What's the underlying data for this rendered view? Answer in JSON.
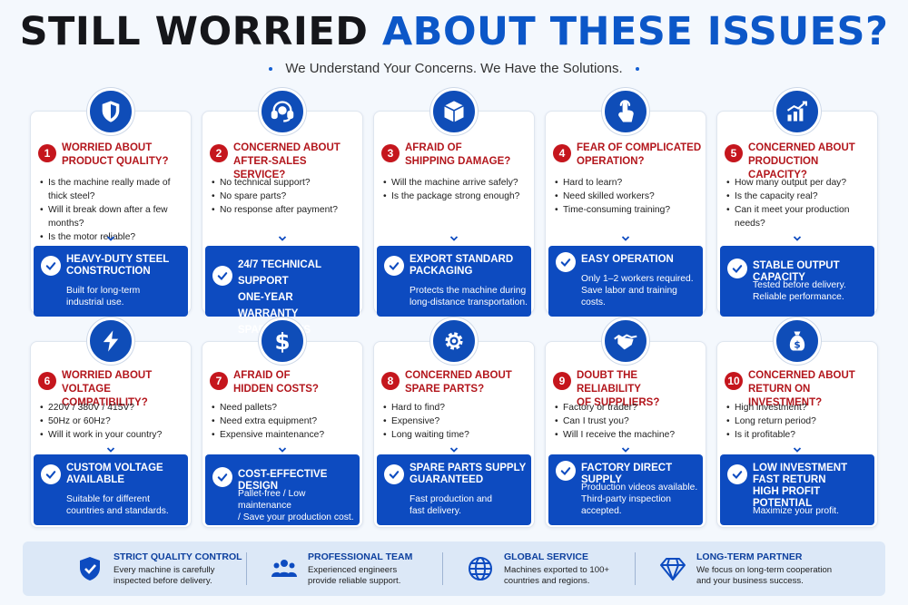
{
  "header": {
    "title_part1": "STILL WORRIED",
    "title_part2": "ABOUT THESE ISSUES?",
    "subtitle": "We Understand Your Concerns. We Have the Solutions."
  },
  "colors": {
    "primary_blue": "#0d4bc0",
    "accent_red": "#c5161d",
    "title_dark": "#15161a",
    "footer_bg": "#dce8f7"
  },
  "cards": [
    {
      "icon": "shield-icon",
      "number": "1",
      "heading": [
        "WORRIED ABOUT",
        "PRODUCT QUALITY?"
      ],
      "questions": [
        "Is the machine really made of thick steel?",
        "Will it break down after a few months?",
        "Is the motor reliable?"
      ],
      "solution_title": [
        "HEAVY-DUTY STEEL",
        "CONSTRUCTION"
      ],
      "solution_desc": [
        "Built for long-term",
        "industrial use."
      ]
    },
    {
      "icon": "headset-icon",
      "number": "2",
      "heading": [
        "CONCERNED ABOUT",
        "AFTER-SALES SERVICE?"
      ],
      "questions": [
        "No technical support?",
        "No spare parts?",
        "No response after payment?"
      ],
      "solution_title": [
        "24/7 TECHNICAL SUPPORT",
        "ONE-YEAR WARRANTY",
        "SPARE PARTS AVAILABLE"
      ],
      "solution_desc": []
    },
    {
      "icon": "package-icon",
      "number": "3",
      "heading": [
        "AFRAID OF",
        "SHIPPING DAMAGE?"
      ],
      "questions": [
        "Will the machine arrive safely?",
        "Is the package strong enough?"
      ],
      "solution_title": [
        "EXPORT STANDARD",
        "PACKAGING"
      ],
      "solution_desc": [
        "Protects the machine during",
        "long-distance transportation."
      ]
    },
    {
      "icon": "touch-hand-icon",
      "number": "4",
      "heading": [
        "FEAR OF COMPLICATED",
        "OPERATION?"
      ],
      "questions": [
        "Hard to learn?",
        "Need skilled workers?",
        "Time-consuming training?"
      ],
      "solution_title": [
        "EASY OPERATION"
      ],
      "solution_desc": [
        "Only 1–2 workers required.",
        "Save labor and training",
        "costs."
      ]
    },
    {
      "icon": "bar-chart-icon",
      "number": "5",
      "heading": [
        "CONCERNED ABOUT",
        "PRODUCTION CAPACITY?"
      ],
      "questions": [
        "How many output per day?",
        "Is the capacity real?",
        "Can it meet your production needs?"
      ],
      "solution_title": [
        "STABLE OUTPUT CAPACITY"
      ],
      "solution_desc": [
        "Tested before delivery.",
        "Reliable performance."
      ]
    },
    {
      "icon": "lightning-icon",
      "number": "6",
      "heading": [
        "WORRIED ABOUT",
        "VOLTAGE COMPATIBILITY?"
      ],
      "questions": [
        "220V / 380V / 415V?",
        "50Hz or 60Hz?",
        "Will it work in your country?"
      ],
      "solution_title": [
        "CUSTOM VOLTAGE",
        "AVAILABLE"
      ],
      "solution_desc": [
        "Suitable for different",
        "countries and standards."
      ]
    },
    {
      "icon": "dollar-icon",
      "number": "7",
      "heading": [
        "AFRAID OF",
        "HIDDEN COSTS?"
      ],
      "questions": [
        "Need pallets?",
        "Need extra equipment?",
        "Expensive maintenance?"
      ],
      "solution_title": [
        "COST-EFFECTIVE DESIGN"
      ],
      "solution_desc": [
        "Pallet-free / Low maintenance",
        "/ Save your production cost."
      ]
    },
    {
      "icon": "gear-icon",
      "number": "8",
      "heading": [
        "CONCERNED ABOUT",
        "SPARE PARTS?"
      ],
      "questions": [
        "Hard to find?",
        "Expensive?",
        "Long waiting time?"
      ],
      "solution_title": [
        "SPARE PARTS SUPPLY",
        "GUARANTEED"
      ],
      "solution_desc": [
        "Fast production and",
        "fast delivery."
      ]
    },
    {
      "icon": "handshake-icon",
      "number": "9",
      "heading": [
        "DOUBT THE RELIABILITY",
        "OF SUPPLIERS?"
      ],
      "questions": [
        "Factory or trader?",
        "Can I trust you?",
        "Will I receive the machine?"
      ],
      "solution_title": [
        "FACTORY DIRECT SUPPLY"
      ],
      "solution_desc": [
        "Production videos available.",
        "Third-party inspection",
        "accepted."
      ]
    },
    {
      "icon": "money-bag-icon",
      "number": "10",
      "heading": [
        "CONCERNED ABOUT",
        "RETURN ON INVESTMENT?"
      ],
      "questions": [
        "High investment?",
        "Long return period?",
        "Is it profitable?"
      ],
      "solution_title": [
        "LOW INVESTMENT",
        "FAST RETURN",
        "HIGH PROFIT POTENTIAL"
      ],
      "solution_desc": [
        "Maximize your profit."
      ]
    }
  ],
  "footer": [
    {
      "icon": "shield-check-icon",
      "title": "STRICT QUALITY CONTROL",
      "desc": [
        "Every machine is carefully",
        "inspected before delivery."
      ]
    },
    {
      "icon": "team-icon",
      "title": "PROFESSIONAL TEAM",
      "desc": [
        "Experienced engineers",
        "provide reliable support."
      ]
    },
    {
      "icon": "globe-icon",
      "title": "GLOBAL SERVICE",
      "desc": [
        "Machines exported to 100+",
        "countries and regions."
      ]
    },
    {
      "icon": "diamond-icon",
      "title": "LONG-TERM PARTNER",
      "desc": [
        "We focus on long-term cooperation",
        "and your business success."
      ]
    }
  ]
}
